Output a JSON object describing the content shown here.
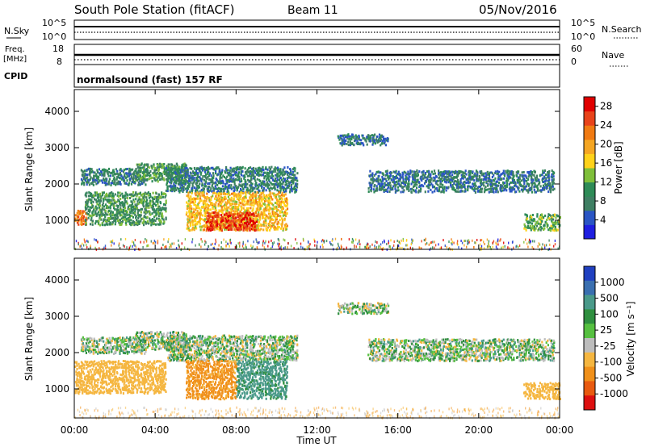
{
  "header": {
    "title": "South Pole Station (fitACF)",
    "beam": "Beam 11",
    "date": "05/Nov/2016"
  },
  "top_panels": {
    "nsky_label": "N.Sky",
    "nsearch_label": "N.Search",
    "noise_ticks": [
      "10^5",
      "10^0"
    ],
    "freq_label_1": "Freq.",
    "freq_label_2": "[MHz]",
    "freq_ticks": [
      "18",
      "8"
    ],
    "nave_label": "Nave",
    "nave_ticks": [
      "60",
      "0"
    ],
    "cpid_label": "CPID",
    "cpid_text": "normalsound (fast) 157 RF"
  },
  "colors": {
    "power_scale": [
      "#1f1fe0",
      "#2a55c4",
      "#3f7f63",
      "#2e8b57",
      "#7fbf3a",
      "#ffd21a",
      "#f5a623",
      "#f07a12",
      "#e8431a",
      "#e00000"
    ],
    "velocity_scale": [
      "#2040c0",
      "#3a6fb0",
      "#4a9a8a",
      "#2f8f3f",
      "#56c040",
      "#bdbdbd",
      "#f5b640",
      "#f0901a",
      "#e85a10",
      "#dd1010"
    ]
  },
  "chart_data": [
    {
      "type": "heatmap",
      "title": "Power",
      "ylabel": "Slant Range [km]",
      "xlabel": "Time UT",
      "y_ticks": [
        "1000",
        "2000",
        "3000",
        "4000"
      ],
      "ylim": [
        200,
        4600
      ],
      "x_ticks": [
        "00:00",
        "04:00",
        "08:00",
        "12:00",
        "16:00",
        "20:00",
        "00:00"
      ],
      "xlim_hours": [
        0,
        24
      ],
      "colorbar_label": "Power [dB]",
      "colorbar_ticks": [
        "4",
        "8",
        "12",
        "16",
        "20",
        "24",
        "28"
      ],
      "colorbar_range": [
        0,
        30
      ],
      "regions": [
        {
          "t": [
            0.3,
            3.5
          ],
          "r": [
            2000,
            2450
          ],
          "v": 8
        },
        {
          "t": [
            3.0,
            5.5
          ],
          "r": [
            2100,
            2600
          ],
          "v": 10
        },
        {
          "t": [
            4.5,
            11.0
          ],
          "r": [
            1800,
            2500
          ],
          "v": 8
        },
        {
          "t": [
            0.0,
            0.6
          ],
          "r": [
            900,
            1300
          ],
          "v": 22
        },
        {
          "t": [
            0.5,
            4.5
          ],
          "r": [
            900,
            1800
          ],
          "v": 10
        },
        {
          "t": [
            5.5,
            10.5
          ],
          "r": [
            750,
            1800
          ],
          "v": 18
        },
        {
          "t": [
            6.5,
            9.0
          ],
          "r": [
            750,
            1250
          ],
          "v": 26
        },
        {
          "t": [
            13.0,
            15.5
          ],
          "r": [
            3100,
            3400
          ],
          "v": 7
        },
        {
          "t": [
            14.5,
            23.7
          ],
          "r": [
            1800,
            2400
          ],
          "v": 7
        },
        {
          "t": [
            22.2,
            24.0
          ],
          "r": [
            750,
            1200
          ],
          "v": 12
        }
      ]
    },
    {
      "type": "heatmap",
      "title": "Velocity",
      "ylabel": "Slant Range [km]",
      "xlabel": "Time UT",
      "y_ticks": [
        "1000",
        "2000",
        "3000",
        "4000"
      ],
      "ylim": [
        200,
        4600
      ],
      "x_ticks": [
        "00:00",
        "04:00",
        "08:00",
        "12:00",
        "16:00",
        "20:00",
        "00:00"
      ],
      "xlim_hours": [
        0,
        24
      ],
      "colorbar_label": "Velocity [m s⁻¹]",
      "colorbar_ticks": [
        "1000",
        "500",
        "100",
        "25",
        "-25",
        "-100",
        "-500",
        "-1000"
      ],
      "colorbar_range": [
        -1000,
        1000
      ],
      "regions": [
        {
          "t": [
            0.3,
            3.5
          ],
          "r": [
            2000,
            2450
          ],
          "v": 0
        },
        {
          "t": [
            3.0,
            5.5
          ],
          "r": [
            2100,
            2600
          ],
          "v": 0
        },
        {
          "t": [
            4.5,
            11.0
          ],
          "r": [
            1800,
            2500
          ],
          "v": 0
        },
        {
          "t": [
            0.0,
            4.5
          ],
          "r": [
            900,
            1800
          ],
          "v": -300
        },
        {
          "t": [
            5.5,
            8.0
          ],
          "r": [
            750,
            1800
          ],
          "v": -600
        },
        {
          "t": [
            8.0,
            10.5
          ],
          "r": [
            750,
            1800
          ],
          "v": 200
        },
        {
          "t": [
            13.0,
            15.5
          ],
          "r": [
            3100,
            3400
          ],
          "v": 0
        },
        {
          "t": [
            14.5,
            23.7
          ],
          "r": [
            1800,
            2400
          ],
          "v": 0
        },
        {
          "t": [
            22.2,
            24.0
          ],
          "r": [
            750,
            1200
          ],
          "v": -300
        }
      ]
    }
  ]
}
